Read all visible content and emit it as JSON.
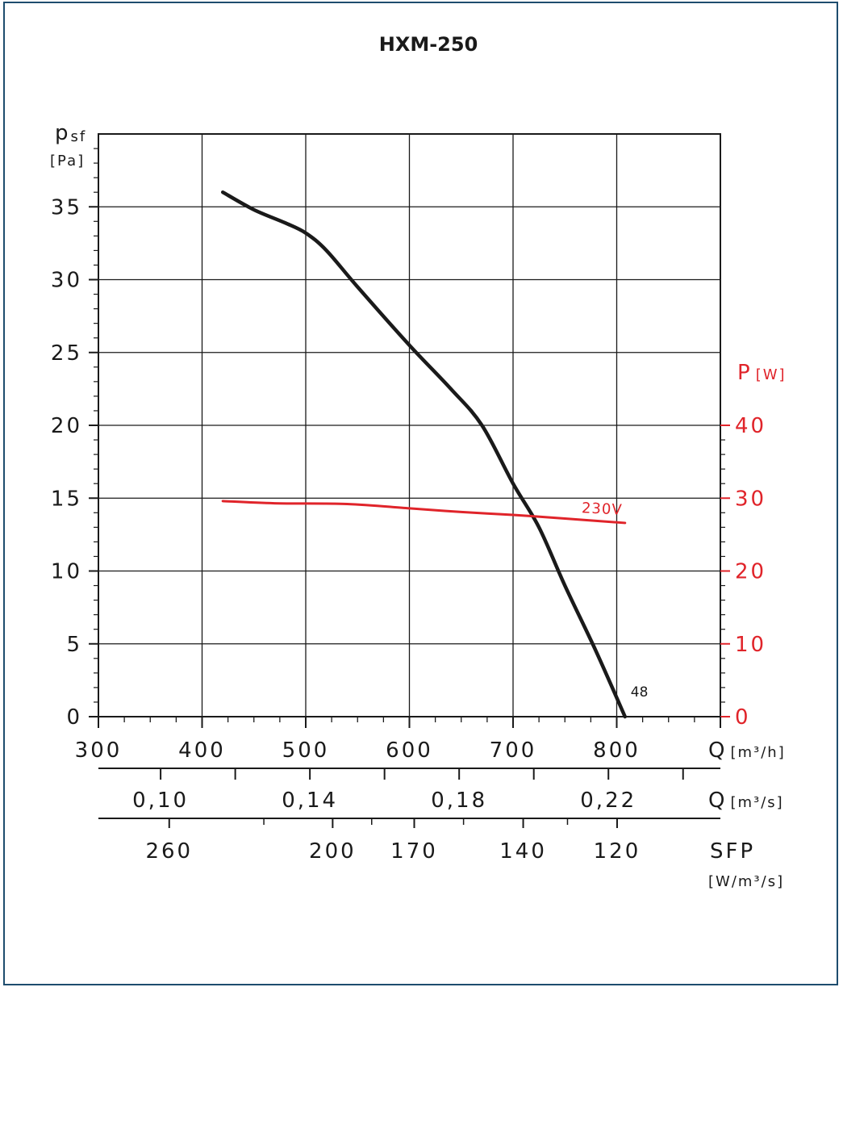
{
  "chart_data": {
    "type": "line",
    "title": "HXM-250",
    "colors": {
      "pressure": "#1a1a1a",
      "power": "#e0242a",
      "grid": "#1a1a1a",
      "frame": "#1e4d6e"
    },
    "y_left": {
      "label_main": "p",
      "label_sub": "sf",
      "unit": "[Pa]",
      "range": [
        0,
        40
      ],
      "ticks": [
        0,
        5,
        10,
        15,
        20,
        25,
        30,
        35
      ],
      "tick_labels": [
        "0",
        "5",
        "10",
        "15",
        "20",
        "25",
        "30",
        "35"
      ]
    },
    "y_right": {
      "label_main": "P",
      "unit": "[W]",
      "range": [
        0,
        80
      ],
      "ticks": [
        0,
        10,
        20,
        30,
        40
      ],
      "tick_labels": [
        "0",
        "10",
        "20",
        "30",
        "40"
      ]
    },
    "x": {
      "label": "Q",
      "unit": "[m³/h]",
      "range": [
        300,
        900
      ],
      "ticks": [
        300,
        400,
        500,
        600,
        700,
        800
      ],
      "tick_labels": [
        "300",
        "400",
        "500",
        "600",
        "700",
        "800"
      ]
    },
    "x2": {
      "label": "Q",
      "unit": "[m³/s]",
      "tick_labels": [
        "0,10",
        "0,14",
        "0,18",
        "0,22"
      ],
      "label_values": [
        0.1,
        0.14,
        0.18,
        0.22
      ],
      "tick_values": [
        0.12,
        0.16,
        0.2,
        0.24
      ]
    },
    "sfp": {
      "label": "SFP",
      "unit": "[W/m³/s]",
      "tick_labels": [
        "260",
        "200",
        "170",
        "140",
        "120"
      ],
      "tick_values": [
        260,
        200,
        170,
        140,
        120
      ],
      "minor_values": [
        230,
        185,
        155,
        130
      ]
    },
    "series": [
      {
        "key": "pressure",
        "axis": "left",
        "x": [
          420,
          450,
          480,
          500,
          520,
          550,
          600,
          640,
          670,
          700,
          725,
          750,
          780,
          808
        ],
        "y": [
          36.0,
          34.8,
          33.9,
          33.2,
          32.0,
          29.5,
          25.5,
          22.5,
          20.0,
          16.0,
          13.0,
          9.0,
          4.5,
          0.0
        ],
        "end_label": "48"
      },
      {
        "key": "power",
        "axis": "right",
        "name": "230V",
        "x": [
          420,
          470,
          540,
          600,
          650,
          700,
          750,
          808
        ],
        "y": [
          29.6,
          29.3,
          29.2,
          28.6,
          28.1,
          27.7,
          27.2,
          26.6
        ]
      }
    ]
  }
}
